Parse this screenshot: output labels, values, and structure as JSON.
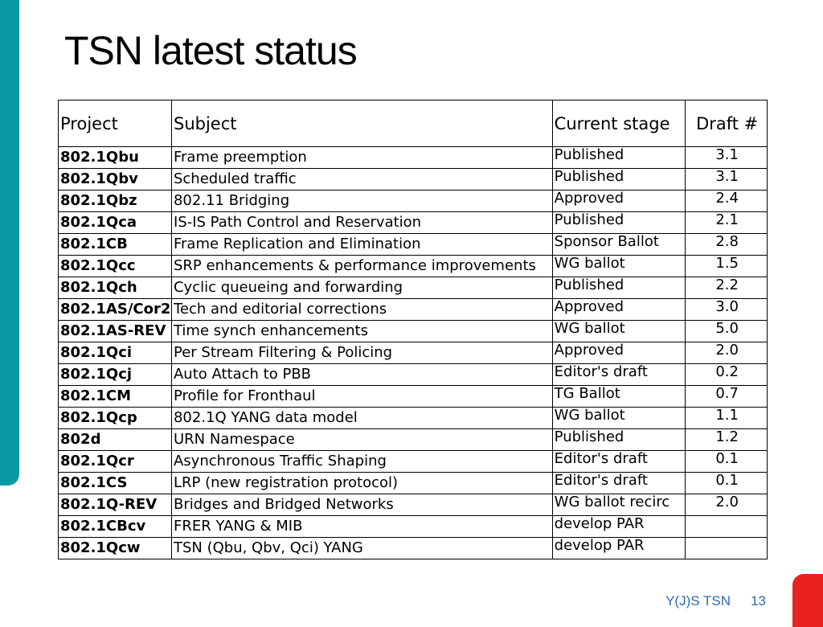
{
  "slide": {
    "title": "TSN latest status",
    "footer_label": "Y(J)S TSN",
    "page_number": "13",
    "accent_colors": {
      "left_bar": "#0a9aa5",
      "corner_tab": "#e8221f",
      "footer_text": "#2a68b8"
    }
  },
  "table": {
    "headers": {
      "project": "Project",
      "subject": "Subject",
      "stage": "Current stage",
      "draft": "Draft #"
    },
    "rows": [
      {
        "project": "802.1Qbu",
        "subject": "Frame preemption",
        "stage": "Published",
        "draft": "3.1"
      },
      {
        "project": "802.1Qbv",
        "subject": "Scheduled traffic",
        "stage": "Published",
        "draft": "3.1"
      },
      {
        "project": "802.1Qbz",
        "subject": "802.11 Bridging",
        "stage": "Approved",
        "draft": "2.4"
      },
      {
        "project": "802.1Qca",
        "subject": "IS-IS Path Control and Reservation",
        "stage": "Published",
        "draft": "2.1"
      },
      {
        "project": "802.1CB",
        "subject": "Frame Replication and Elimination",
        "stage": "Sponsor Ballot",
        "draft": "2.8"
      },
      {
        "project": "802.1Qcc",
        "subject": "SRP enhancements & performance improvements",
        "stage": "WG ballot",
        "draft": "1.5"
      },
      {
        "project": "802.1Qch",
        "subject": "Cyclic queueing and forwarding",
        "stage": "Published",
        "draft": "2.2"
      },
      {
        "project": "802.1AS/Cor2",
        "subject": "Tech and editorial corrections",
        "stage": "Approved",
        "draft": "3.0"
      },
      {
        "project": "802.1AS-REV",
        "subject": "Time synch enhancements",
        "stage": "WG ballot",
        "draft": "5.0"
      },
      {
        "project": "802.1Qci",
        "subject": "Per Stream Filtering & Policing",
        "stage": "Approved",
        "draft": "2.0"
      },
      {
        "project": "802.1Qcj",
        "subject": "Auto Attach to PBB",
        "stage": "Editor's draft",
        "draft": "0.2"
      },
      {
        "project": "802.1CM",
        "subject": "Profile for Fronthaul",
        "stage": "TG Ballot",
        "draft": "0.7"
      },
      {
        "project": "802.1Qcp",
        "subject": "802.1Q YANG data model",
        "stage": "WG ballot",
        "draft": "1.1"
      },
      {
        "project": "802d",
        "subject": "URN Namespace",
        "stage": "Published",
        "draft": "1.2"
      },
      {
        "project": "802.1Qcr",
        "subject": "Asynchronous Traffic Shaping",
        "stage": "Editor's draft",
        "draft": "0.1"
      },
      {
        "project": "802.1CS",
        "subject": "LRP (new registration protocol)",
        "stage": "Editor's draft",
        "draft": "0.1"
      },
      {
        "project": "802.1Q-REV",
        "subject": "Bridges and Bridged Networks",
        "stage": "WG ballot recirc",
        "draft": "2.0"
      },
      {
        "project": "802.1CBcv",
        "subject": "FRER YANG & MIB",
        "stage": "develop PAR",
        "draft": ""
      },
      {
        "project": "802.1Qcw",
        "subject": "TSN (Qbu, Qbv, Qci) YANG",
        "stage": "develop PAR",
        "draft": ""
      }
    ]
  }
}
